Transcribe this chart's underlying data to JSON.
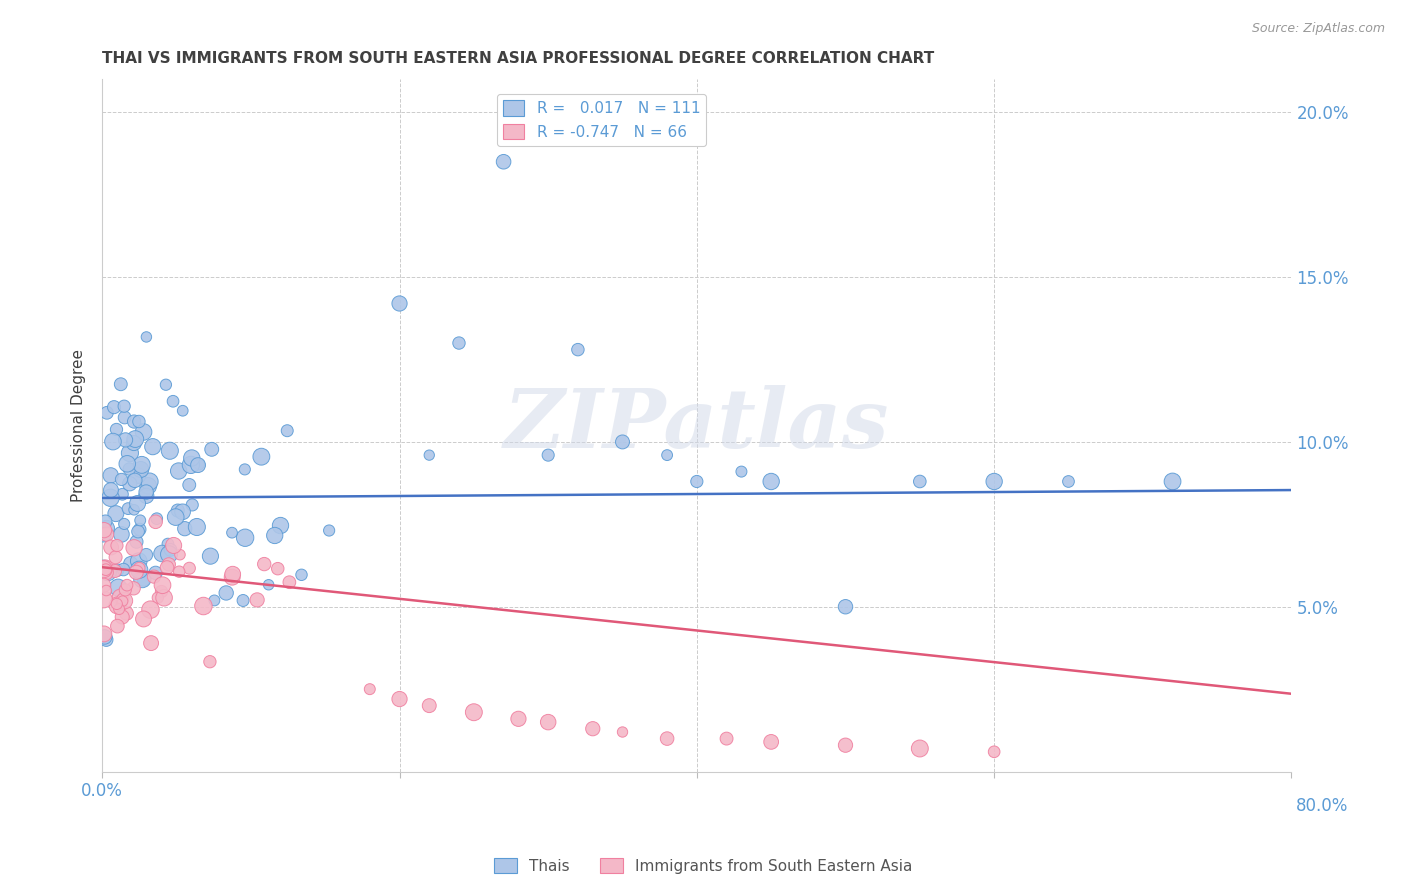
{
  "title": "THAI VS IMMIGRANTS FROM SOUTH EASTERN ASIA PROFESSIONAL DEGREE CORRELATION CHART",
  "source": "Source: ZipAtlas.com",
  "ylabel": "Professional Degree",
  "xlim": [
    0.0,
    0.8
  ],
  "ylim": [
    0.0,
    0.21
  ],
  "legend_label1": "R =   0.017   N = 111",
  "legend_label2": "R = -0.747   N = 66",
  "legend_color1": "#aec6e8",
  "legend_color2": "#f4b8c8",
  "blue_edge_color": "#5b9bd5",
  "pink_edge_color": "#f080a0",
  "line_blue": "#4472c4",
  "line_pink": "#e05878",
  "watermark": "ZIPatlas",
  "background_color": "#ffffff",
  "grid_color": "#cccccc",
  "title_color": "#404040",
  "axis_label_color": "#5b9bd5",
  "blue_intercept": 0.083,
  "blue_slope": 0.003,
  "pink_intercept": 0.062,
  "pink_slope": -0.048
}
